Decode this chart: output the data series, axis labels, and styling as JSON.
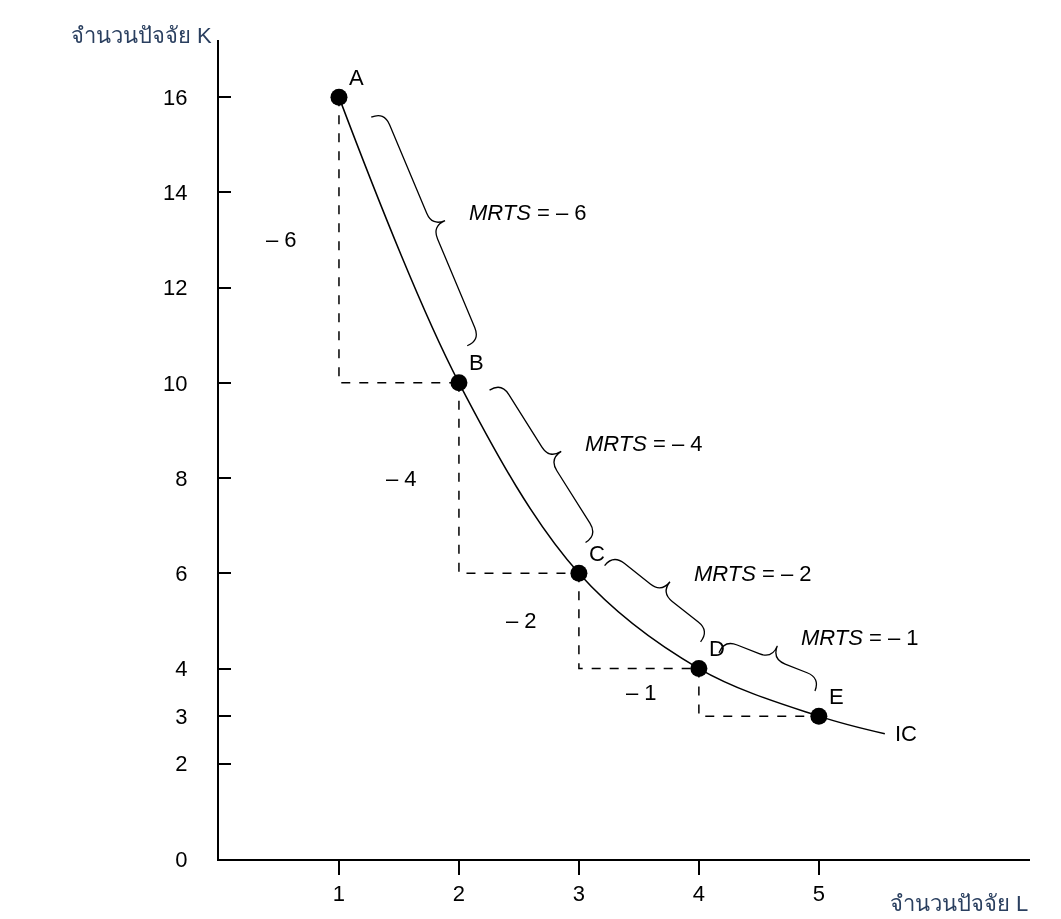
{
  "chart_data": {
    "type": "line",
    "xlabel": "จำนวนปัจจัย L",
    "ylabel": "จำนวนปัจจัย K",
    "xlim": [
      0,
      6.76
    ],
    "ylim": [
      0,
      17.2
    ],
    "xticks": [
      1,
      2,
      3,
      4,
      5
    ],
    "yticks": [
      0,
      2,
      3,
      4,
      6,
      8,
      10,
      12,
      14,
      16
    ],
    "series": [
      {
        "name": "IC",
        "color": "#000000",
        "line_style": "solid",
        "x": [
          1,
          2,
          3,
          4,
          5,
          5.55
        ],
        "values": [
          16,
          10,
          6,
          4,
          3,
          2.63
        ]
      },
      {
        "color": "#000000",
        "line_style": "dashed",
        "x": [
          1,
          1,
          2,
          null,
          2,
          2,
          3,
          null,
          3,
          3,
          4,
          null,
          4,
          4,
          5
        ],
        "values": [
          16,
          10,
          10,
          null,
          10,
          6,
          6,
          null,
          6,
          4,
          4,
          null,
          4,
          3,
          3
        ]
      },
      {
        "type": "scatter",
        "color": "#000000",
        "marker": "circle",
        "x": [
          1,
          2,
          3,
          4,
          5
        ],
        "values": [
          16,
          10,
          6,
          4,
          3
        ]
      }
    ],
    "annotations": [
      {
        "text": "A",
        "x": 1,
        "y": 16
      },
      {
        "text": "B",
        "x": 2,
        "y": 10
      },
      {
        "text": "C",
        "x": 3,
        "y": 6
      },
      {
        "text": "D",
        "x": 4,
        "y": 4
      },
      {
        "text": "E",
        "x": 5,
        "y": 3
      },
      "– 6",
      "– 4",
      "– 2",
      "– 1",
      "MRTS = – 6",
      "MRTS = – 4",
      "MRTS = – 2",
      "MRTS = – 1"
    ]
  }
}
